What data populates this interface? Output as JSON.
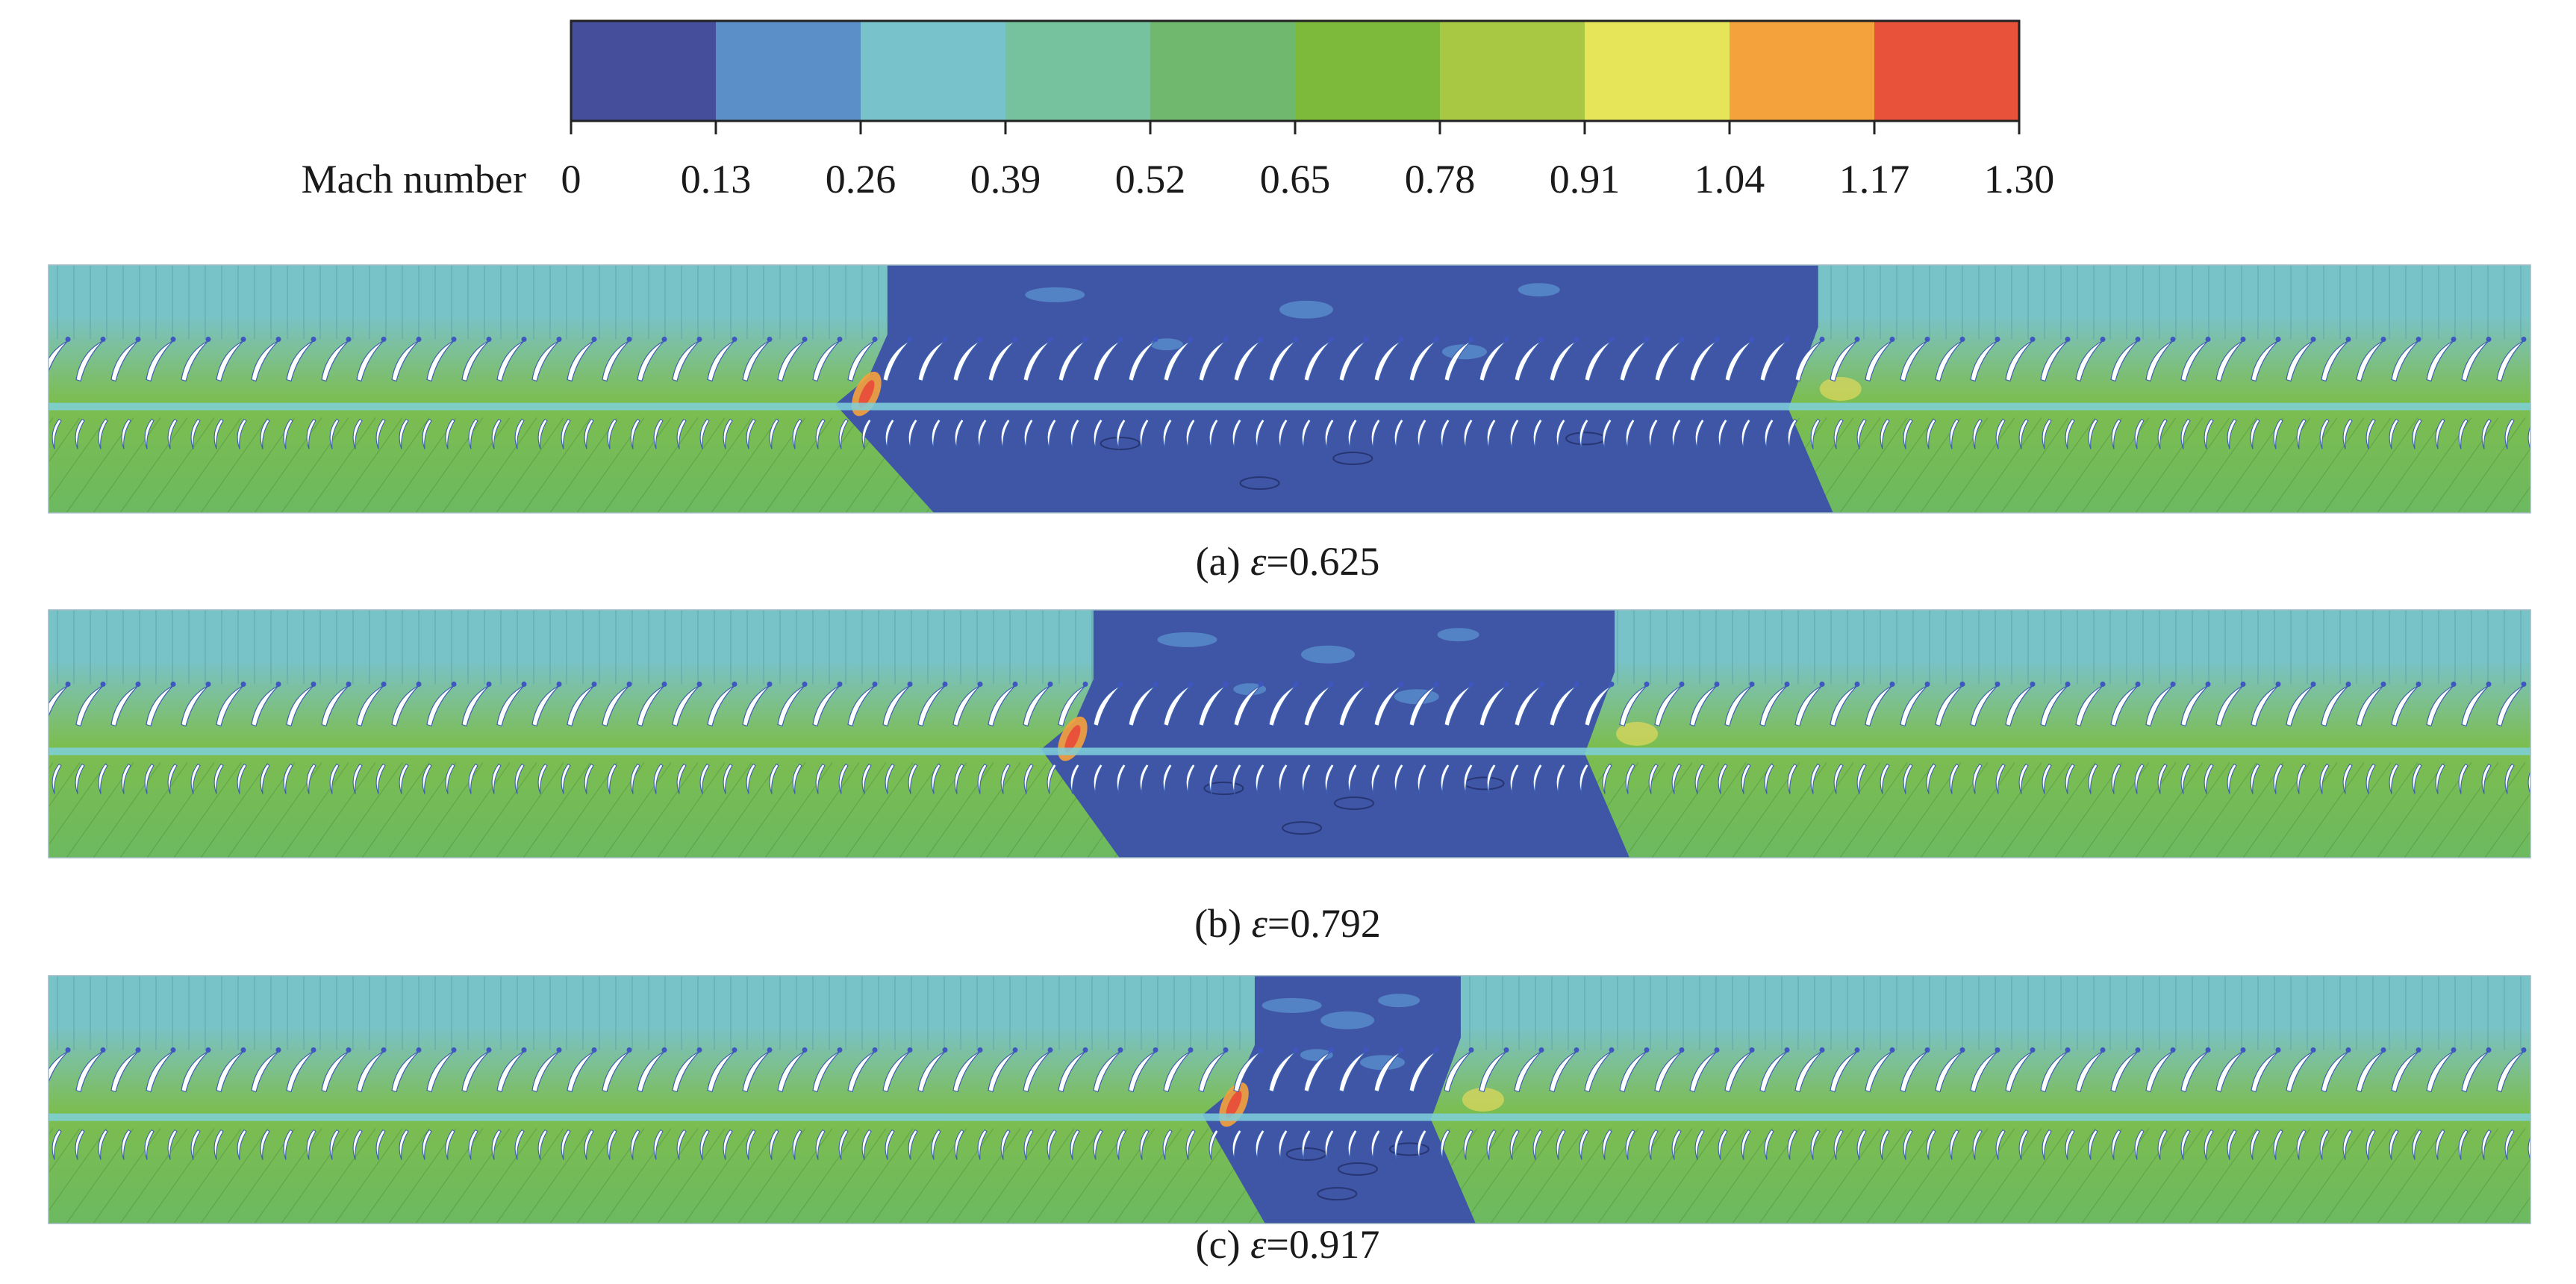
{
  "colorbar": {
    "title": "Mach number",
    "ticks": [
      "0",
      "0.13",
      "0.26",
      "0.39",
      "0.52",
      "0.65",
      "0.78",
      "0.91",
      "1.04",
      "1.17",
      "1.30"
    ],
    "colors": [
      "#444e9a",
      "#5b8fc8",
      "#77c2cb",
      "#77c29e",
      "#6fb86d",
      "#7db93b",
      "#a8c844",
      "#e6e55a",
      "#f4a23c",
      "#e8513a"
    ]
  },
  "panels": [
    {
      "label_prefix": "(a) ",
      "symbol": "ε",
      "value_text": "=0.625",
      "stall_start": 0.338,
      "stall_end": 0.713
    },
    {
      "label_prefix": "(b) ",
      "symbol": "ε",
      "value_text": "=0.792",
      "stall_start": 0.421,
      "stall_end": 0.631
    },
    {
      "label_prefix": "(c) ",
      "symbol": "ε",
      "value_text": "=0.917",
      "stall_start": 0.486,
      "stall_end": 0.569
    }
  ],
  "field_colors": {
    "upstream": "#78c3c8",
    "upper_passage": "#7dbd57",
    "lower_passage": "#6db95e",
    "stall": "#3f56a6",
    "stall_pocket": "#5a8fcd",
    "shock": "#f5a13c",
    "shock_core": "#e8513a",
    "band": "#7fd0dc"
  }
}
